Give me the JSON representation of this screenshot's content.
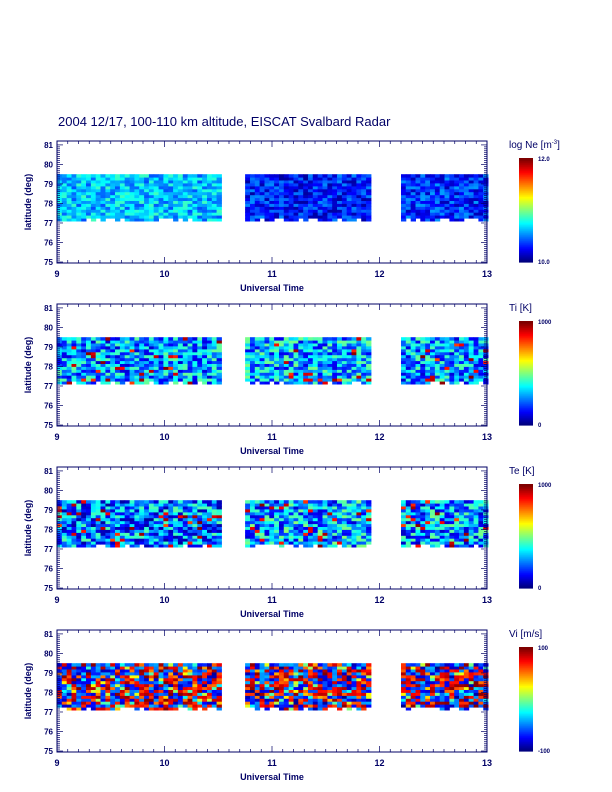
{
  "chart_data": {
    "type": "heatmap",
    "title": "2004 12/17, 100-110 km altitude, EISCAT Svalbard Radar",
    "xlabel": "Universal Time",
    "ylabel": "latitude (deg)",
    "xlim": [
      9,
      13
    ],
    "ylim": [
      75,
      81
    ],
    "xticks": [
      "9",
      "10",
      "11",
      "12",
      "13"
    ],
    "yticks": [
      "75",
      "76",
      "77",
      "78",
      "79",
      "80",
      "81"
    ],
    "data_lat_range": [
      77.1,
      79.5
    ],
    "segments": [
      [
        9.0,
        10.5
      ],
      [
        10.75,
        11.9
      ],
      [
        12.2,
        13.0
      ]
    ],
    "panels": [
      {
        "name": "Ne",
        "colorbar_label": "log Ne [m",
        "colorbar_sup": "-3",
        "colorbar_close": "]",
        "cmin_label": "10.0",
        "cmax_label": "12.0",
        "range": [
          10.0,
          12.0
        ],
        "segment_mean_fraction": [
          0.32,
          0.15,
          0.17
        ],
        "spread": 0.12
      },
      {
        "name": "Ti",
        "colorbar_label": "Ti [K]",
        "colorbar_sup": "",
        "colorbar_close": "",
        "cmin_label": "0",
        "cmax_label": "1000",
        "range": [
          0,
          1000
        ],
        "segment_mean_fraction": [
          0.28,
          0.3,
          0.28
        ],
        "spread": 0.2
      },
      {
        "name": "Te",
        "colorbar_label": "Te [K]",
        "colorbar_sup": "",
        "colorbar_close": "",
        "cmin_label": "0",
        "cmax_label": "1000",
        "range": [
          0,
          1000
        ],
        "segment_mean_fraction": [
          0.25,
          0.3,
          0.28
        ],
        "spread": 0.22
      },
      {
        "name": "Vi",
        "colorbar_label": "Vi [m/s]",
        "colorbar_sup": "",
        "colorbar_close": "",
        "cmin_label": "-100",
        "cmax_label": "100",
        "range": [
          -100,
          100
        ],
        "segment_mean_fraction": [
          0.65,
          0.6,
          0.5
        ],
        "spread": 0.45
      }
    ]
  }
}
